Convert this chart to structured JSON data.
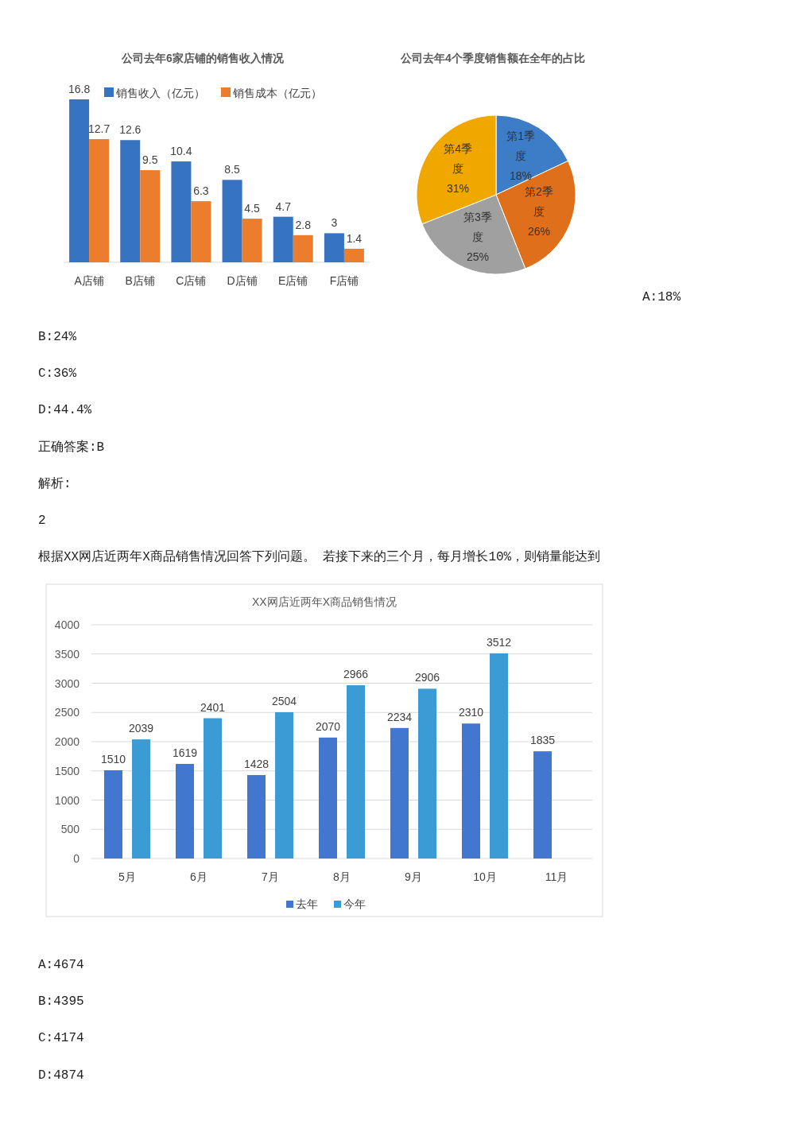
{
  "chart_data": [
    {
      "type": "bar",
      "title": "公司去年6家店铺的销售收入情况",
      "categories": [
        "A店铺",
        "B店铺",
        "C店铺",
        "D店铺",
        "E店铺",
        "F店铺"
      ],
      "series": [
        {
          "name": "销售收入（亿元）",
          "color": "#3674c2",
          "values": [
            16.8,
            12.6,
            10.4,
            8.5,
            4.7,
            3
          ]
        },
        {
          "name": "销售成本（亿元）",
          "color": "#ec7d2d",
          "values": [
            12.7,
            9.5,
            6.3,
            4.5,
            2.8,
            1.4
          ]
        }
      ],
      "data_labels": true,
      "legend": "top",
      "tick_labels": "x"
    },
    {
      "type": "pie",
      "title": "公司去年4个季度销售额在全年的占比",
      "categories": [
        "第1季度",
        "第2季度",
        "第3季度",
        "第4季度"
      ],
      "values": [
        18,
        26,
        25,
        31
      ],
      "colors": [
        "#3d7dc8",
        "#e06f1c",
        "#a0a0a0",
        "#f0a700"
      ],
      "value_labels": [
        "18%",
        "26%",
        "25%",
        "31%"
      ]
    },
    {
      "type": "other",
      "annotations": [
        "A:18%",
        "B:24%",
        "C:36%",
        "D:44.4%",
        "正确答案:B",
        "解析:",
        "2",
        "根据XX网店近两年X商品销售情况回答下列问题。 若接下来的三个月，每月增长10%，则销量能达到"
      ]
    },
    {
      "type": "bar",
      "title": "XX网店近两年X商品销售情况",
      "categories": [
        "5月",
        "6月",
        "7月",
        "8月",
        "9月",
        "10月",
        "11月"
      ],
      "series": [
        {
          "name": "去年",
          "color": "#4277cf",
          "values": [
            1510,
            1619,
            1428,
            2070,
            2234,
            2310,
            1835
          ]
        },
        {
          "name": "今年",
          "color": "#3b9bd5",
          "values": [
            2039,
            2401,
            2504,
            2966,
            2906,
            3512,
            null
          ]
        }
      ],
      "ylim": [
        0,
        4000
      ],
      "yticks": [
        0,
        500,
        1000,
        1500,
        2000,
        2500,
        3000,
        3500,
        4000
      ],
      "grid": "y",
      "legend": "bottom",
      "data_labels": true
    },
    {
      "type": "other",
      "annotations": [
        "A:4674",
        "B:4395",
        "C:4174",
        "D:4874"
      ]
    }
  ]
}
